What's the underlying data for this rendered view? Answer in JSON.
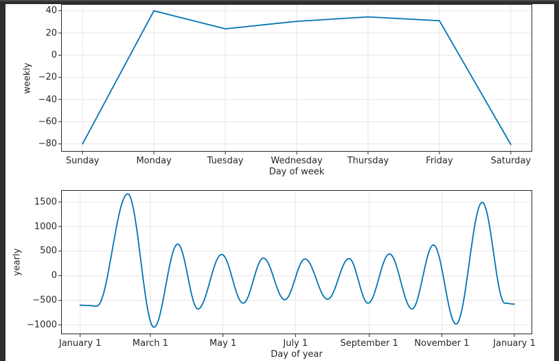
{
  "window": {
    "background_color": "#2e2e2e",
    "canvas_color": "#ffffff"
  },
  "style": {
    "grid_color": "#e6e6e6",
    "spine_color": "#262626",
    "text_color": "#262626",
    "line_color": "#0072B2"
  },
  "chart_data": [
    {
      "id": "weekly-component",
      "type": "line",
      "title": "",
      "xlabel": "Day of week",
      "ylabel": "weekly",
      "categories": [
        "Sunday",
        "Monday",
        "Tuesday",
        "Wednesday",
        "Thursday",
        "Friday",
        "Saturday"
      ],
      "values": [
        -80,
        40,
        23.7,
        30.5,
        34.5,
        31,
        -80.5
      ],
      "yticks": [
        40,
        20,
        0,
        -20,
        -40,
        -60,
        -80
      ],
      "ylim": [
        -87,
        46
      ],
      "x_margin": 0.3,
      "grid": true,
      "legend": "none",
      "line_color": "#0072B2"
    },
    {
      "id": "yearly-component",
      "type": "line",
      "title": "",
      "xlabel": "Day of year",
      "ylabel": "yearly",
      "xticks_days": [
        0,
        59,
        120,
        181,
        243,
        304,
        365
      ],
      "xtick_labels": [
        "January 1",
        "March 1",
        "May 1",
        "July 1",
        "September 1",
        "November 1",
        "January 1"
      ],
      "xlim": [
        -16,
        380
      ],
      "yticks": [
        1500,
        1000,
        500,
        0,
        -500,
        -1000
      ],
      "ylim": [
        -1190,
        1740
      ],
      "grid": true,
      "legend": "none",
      "line_color": "#0072B2",
      "interpolation": "cosine-between-extrema",
      "keypoints_day_value": [
        [
          0,
          -600
        ],
        [
          7,
          -606
        ],
        [
          14,
          -618
        ],
        [
          40,
          1664
        ],
        [
          62,
          -1048
        ],
        [
          82,
          643
        ],
        [
          99,
          -676
        ],
        [
          119,
          433
        ],
        [
          137,
          -559
        ],
        [
          154,
          359
        ],
        [
          172,
          -489
        ],
        [
          189,
          341
        ],
        [
          208,
          -479
        ],
        [
          226,
          349
        ],
        [
          242,
          -559
        ],
        [
          260,
          443
        ],
        [
          279,
          -675
        ],
        [
          297,
          625
        ],
        [
          316,
          -983
        ],
        [
          338,
          1492
        ],
        [
          357,
          -560
        ],
        [
          365,
          -578
        ]
      ]
    }
  ]
}
